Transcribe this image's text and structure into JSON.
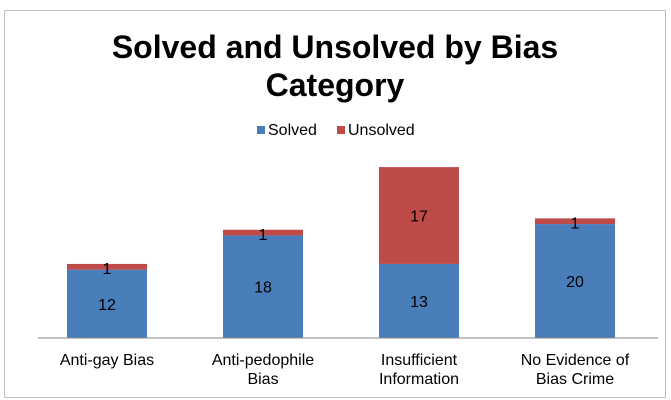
{
  "chart_data": {
    "type": "bar",
    "stacked": true,
    "title_lines": [
      "Solved and Unsolved by Bias",
      "Category"
    ],
    "xlabel": "",
    "ylabel": "",
    "ylim": [
      0,
      33
    ],
    "grid": false,
    "legend_position": "top",
    "categories": [
      [
        "Anti-gay Bias"
      ],
      [
        "Anti-pedophile",
        "Bias"
      ],
      [
        "Insufficient",
        "Information"
      ],
      [
        "No Evidence of",
        "Bias Crime"
      ]
    ],
    "series": [
      {
        "name": "Solved",
        "color": "#4a7ebb",
        "values": [
          12,
          18,
          13,
          20
        ]
      },
      {
        "name": "Unsolved",
        "color": "#be4b48",
        "values": [
          1,
          1,
          17,
          1
        ]
      }
    ]
  }
}
